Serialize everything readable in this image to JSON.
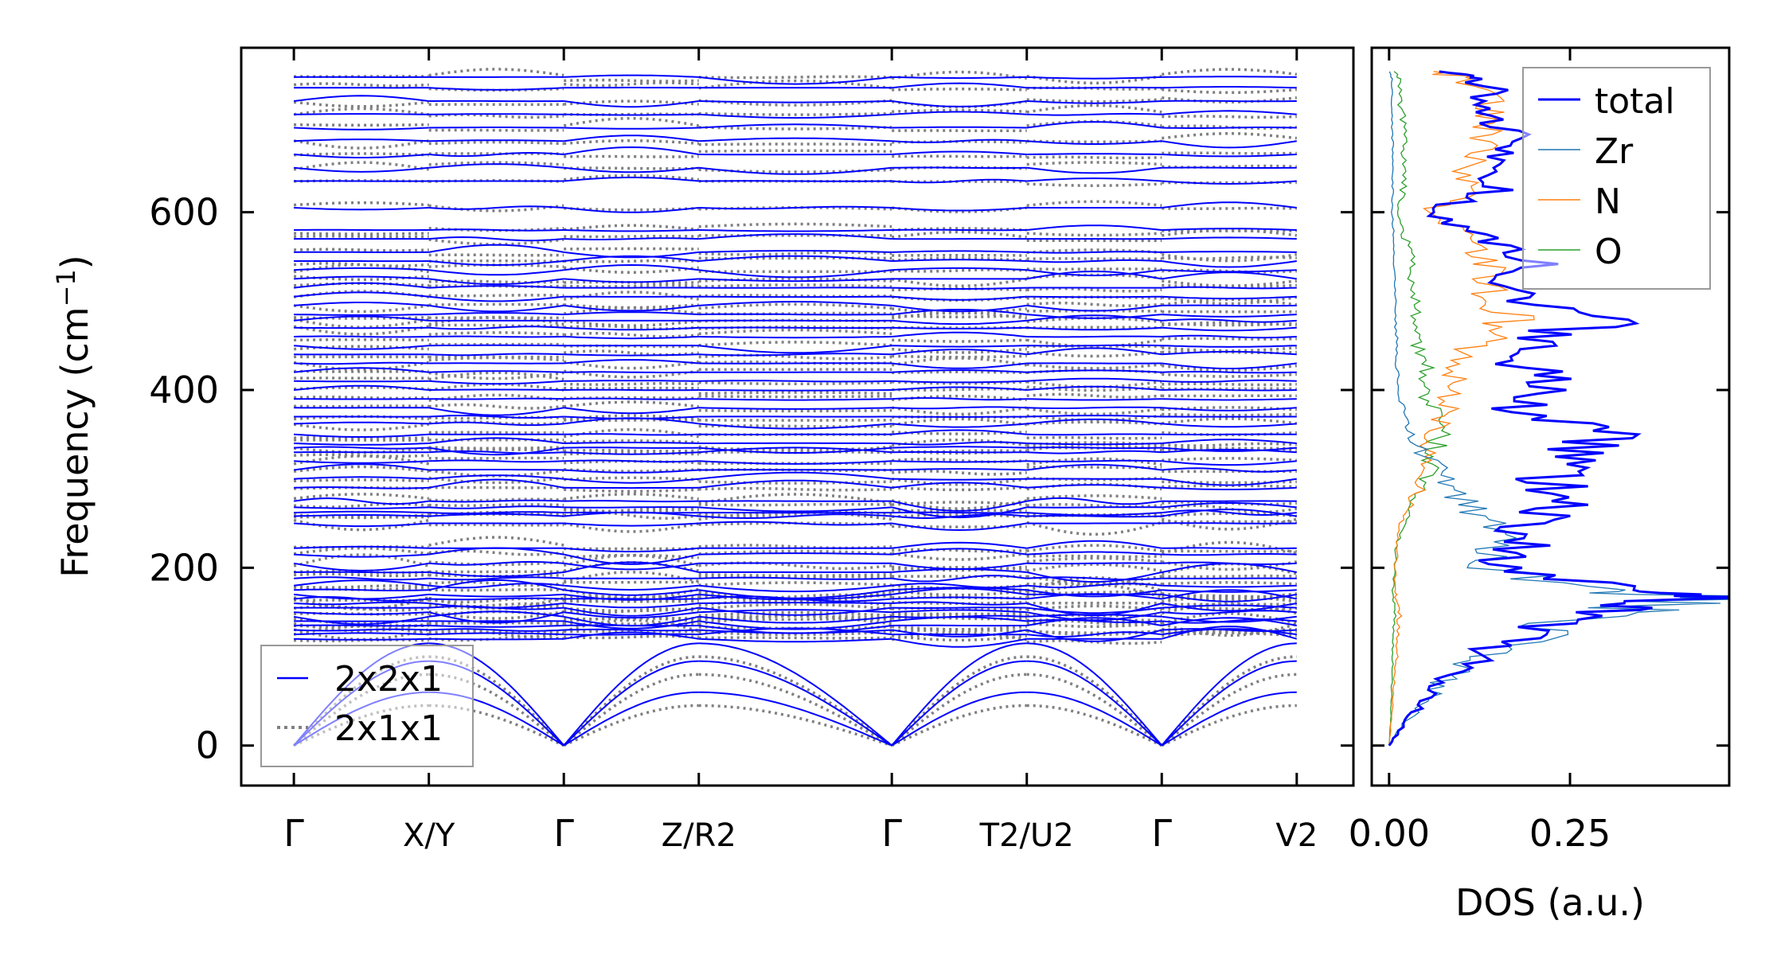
{
  "chart_data": [
    {
      "type": "line",
      "title": "",
      "ylabel": "Frequency (cm⁻¹)",
      "ylabel_text": "Frequency (cm",
      "ylabel_sup": "−1",
      "ylabel_close": ")",
      "xlabel": "",
      "ylim": [
        -45,
        785
      ],
      "yticks": [
        0,
        200,
        400,
        600
      ],
      "xlim": [
        -0.39,
        7.85
      ],
      "kpoints": [
        {
          "x": 0,
          "label": "Γ",
          "sup": "",
          "sub": ""
        },
        {
          "x": 1,
          "label": "X/Y",
          "top": "X",
          "bottom": "Y",
          "bottom_sub": ""
        },
        {
          "x": 2,
          "label": "Γ",
          "sup": "",
          "sub": ""
        },
        {
          "x": 3,
          "label": "Z/R2",
          "top": "Z",
          "bottom": "R",
          "bottom_sub": "2"
        },
        {
          "x": 4.43,
          "label": "Γ",
          "sup": "",
          "sub": ""
        },
        {
          "x": 5.43,
          "label": "T2/U2",
          "top": "T",
          "top_sub": "2",
          "bottom": "U",
          "bottom_sub": "2"
        },
        {
          "x": 6.43,
          "label": "Γ",
          "sup": "",
          "sub": ""
        },
        {
          "x": 7.43,
          "label": "V2",
          "main": "V",
          "main_sub": "2"
        }
      ],
      "series": [
        {
          "name": "2x2x1",
          "style": "solid",
          "color": "#0000ff"
        },
        {
          "name": "2x1x1",
          "style": "dotted",
          "color": "#808080"
        }
      ],
      "gamma_frequencies": [
        120,
        125,
        130,
        135,
        140,
        145,
        150,
        155,
        160,
        165,
        170,
        175,
        180,
        188,
        195,
        205,
        215,
        222,
        250,
        258,
        262,
        268,
        275,
        290,
        300,
        310,
        320,
        330,
        335,
        340,
        350,
        362,
        370,
        380,
        390,
        400,
        410,
        420,
        430,
        440,
        450,
        460,
        470,
        478,
        485,
        495,
        505,
        515,
        525,
        535,
        545,
        555,
        570,
        580,
        605,
        635,
        650,
        665,
        680,
        695,
        710,
        725,
        740,
        752
      ],
      "acoustic_max": [
        115,
        95,
        60
      ],
      "legend": "bottom-left"
    },
    {
      "type": "line",
      "xlabel": "DOS (a.u.)",
      "xticks": [
        "0.00",
        "0.25"
      ],
      "xlim": [
        -0.024,
        0.47
      ],
      "ylim": [
        -45,
        785
      ],
      "freq": [
        0,
        25,
        50,
        75,
        100,
        125,
        150,
        165,
        175,
        200,
        225,
        250,
        275,
        300,
        325,
        350,
        375,
        400,
        425,
        450,
        475,
        500,
        525,
        550,
        575,
        600,
        625,
        650,
        675,
        700,
        725,
        750,
        760
      ],
      "series": [
        {
          "name": "total",
          "color": "#0000ff",
          "values": [
            0,
            0.02,
            0.05,
            0.08,
            0.12,
            0.2,
            0.3,
            0.45,
            0.3,
            0.15,
            0.18,
            0.2,
            0.27,
            0.22,
            0.25,
            0.28,
            0.18,
            0.22,
            0.19,
            0.2,
            0.28,
            0.2,
            0.18,
            0.2,
            0.12,
            0.06,
            0.14,
            0.12,
            0.18,
            0.14,
            0.15,
            0.13,
            0.05
          ]
        },
        {
          "name": "Zr",
          "color": "#1f77b4",
          "values": [
            0,
            0.02,
            0.05,
            0.08,
            0.12,
            0.2,
            0.3,
            0.44,
            0.3,
            0.14,
            0.16,
            0.14,
            0.1,
            0.08,
            0.05,
            0.03,
            0.02,
            0.015,
            0.01,
            0.01,
            0.01,
            0.008,
            0.008,
            0.006,
            0.006,
            0.004,
            0.005,
            0.005,
            0.005,
            0.004,
            0.004,
            0.004,
            0
          ]
        },
        {
          "name": "N",
          "color": "#ff7f0e",
          "values": [
            0,
            0.003,
            0.005,
            0.008,
            0.01,
            0.012,
            0.015,
            0.01,
            0.008,
            0.01,
            0.01,
            0.015,
            0.03,
            0.05,
            0.05,
            0.06,
            0.08,
            0.09,
            0.1,
            0.12,
            0.17,
            0.14,
            0.15,
            0.14,
            0.1,
            0.05,
            0.12,
            0.1,
            0.15,
            0.13,
            0.13,
            0.12,
            0.04
          ]
        },
        {
          "name": "O",
          "color": "#2ca02c",
          "values": [
            0,
            0.002,
            0.003,
            0.004,
            0.005,
            0.006,
            0.008,
            0.006,
            0.005,
            0.008,
            0.01,
            0.02,
            0.03,
            0.05,
            0.06,
            0.07,
            0.06,
            0.05,
            0.05,
            0.04,
            0.03,
            0.04,
            0.03,
            0.03,
            0.02,
            0.01,
            0.02,
            0.02,
            0.02,
            0.02,
            0.015,
            0.015,
            0.005
          ]
        }
      ],
      "legend": "top-right"
    }
  ]
}
